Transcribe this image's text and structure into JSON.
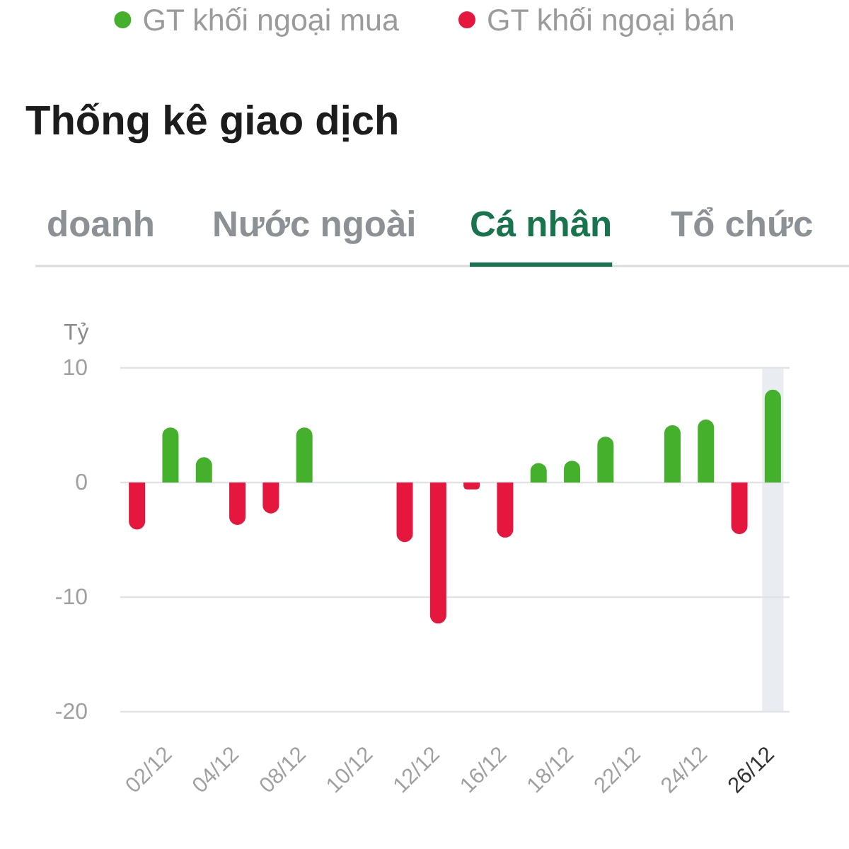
{
  "chart_data": {
    "type": "bar",
    "title": "Thống kê giao dịch",
    "ylabel": "Tỷ",
    "annotations": [
      "doanh",
      "Nước ngoài",
      "Cá nhân",
      "Tổ chức"
    ],
    "categories": [
      null,
      "02/12",
      null,
      "04/12",
      null,
      "08/12",
      null,
      "10/12",
      null,
      "12/12",
      null,
      "16/12",
      null,
      "18/12",
      null,
      "22/12",
      null,
      "24/12",
      null,
      "26/12"
    ],
    "series": [
      {
        "name": "GT khối ngoại mua",
        "color": "#45b02c",
        "values": [
          null,
          4.8,
          2.2,
          null,
          null,
          4.8,
          null,
          null,
          null,
          null,
          null,
          null,
          1.7,
          1.9,
          4.0,
          null,
          5.0,
          5.5,
          null,
          8.1
        ]
      },
      {
        "name": "GT khối ngoại bán",
        "color": "#e5173f",
        "values": [
          -4.1,
          null,
          null,
          -3.7,
          -2.7,
          null,
          null,
          null,
          -5.2,
          -12.3,
          -0.6,
          -4.8,
          null,
          null,
          null,
          null,
          null,
          null,
          -4.5,
          null
        ]
      }
    ],
    "ylim": [
      -20,
      10
    ],
    "yticks": [
      -20,
      -10,
      0,
      10
    ],
    "grid": "y",
    "legend": "top",
    "bands": [
      {
        "axis": "x",
        "from": "26/12",
        "to": "26/12",
        "color": "#e9ecf1"
      }
    ]
  }
}
